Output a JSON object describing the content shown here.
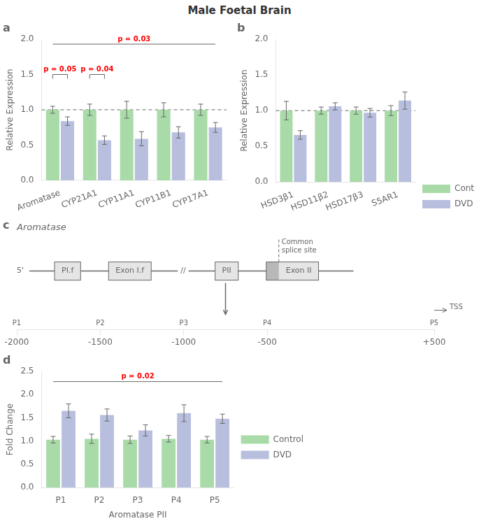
{
  "title": "Male Foetal Brain",
  "chart_data": [
    {
      "type": "bar",
      "panel": "a",
      "categories": [
        "Aromatase",
        "CYP21A1",
        "CYP11A1",
        "CYP11B1",
        "CYP17A1"
      ],
      "series": [
        {
          "name": "Control",
          "color": "#a8dba8",
          "values": [
            1.0,
            1.0,
            1.0,
            1.0,
            1.0
          ],
          "errors": [
            0.05,
            0.08,
            0.12,
            0.1,
            0.08
          ]
        },
        {
          "name": "DVD",
          "color": "#b8bedd",
          "values": [
            0.84,
            0.57,
            0.59,
            0.68,
            0.75
          ],
          "errors": [
            0.06,
            0.06,
            0.1,
            0.08,
            0.07
          ]
        }
      ],
      "ylabel": "Relative Expression",
      "ylim": [
        0.0,
        2.0
      ],
      "yticks": [
        {
          "value": 0.0,
          "label": "0.0"
        },
        0.5,
        {
          "value": 1.0,
          "label": "1.0"
        },
        1.5,
        {
          "value": 2.0,
          "label": "2.0"
        }
      ],
      "grid": false,
      "annotations": [
        {
          "y": 1.0,
          "line_style": "dashed"
        },
        {
          "text": "p = 0.05",
          "color": "red",
          "y": 1.5,
          "categories": [
            "Aromatase"
          ]
        },
        {
          "text": "p = 0.04",
          "color": "red",
          "y": 1.5,
          "categories": [
            "CYP21A1"
          ]
        },
        {
          "text": "p = 0.03",
          "color": "red",
          "y": 1.93,
          "categories": [
            "Aromatase",
            "CYP17A1"
          ]
        }
      ]
    },
    {
      "type": "bar",
      "panel": "b",
      "categories": [
        "HSD3β1",
        "HSD11β2",
        "HSD17β3",
        "S5AR1"
      ],
      "series": [
        {
          "name": "Control",
          "color": "#a8dba8",
          "values": [
            1.0,
            1.0,
            1.0,
            1.0
          ],
          "errors": [
            0.13,
            0.05,
            0.05,
            0.07
          ]
        },
        {
          "name": "DVD",
          "color": "#b8bedd",
          "values": [
            0.66,
            1.06,
            0.97,
            1.14
          ],
          "errors": [
            0.06,
            0.05,
            0.06,
            0.12
          ]
        }
      ],
      "ylabel": "Relative Expression",
      "ylim": [
        0.0,
        2.0
      ],
      "yticks": [
        {
          "value": 0.0,
          "label": "0.0"
        },
        0.5,
        {
          "value": 1.0,
          "label": "1.0"
        },
        1.5,
        {
          "value": 2.0,
          "label": "2.0"
        }
      ],
      "grid": false,
      "legend": "right",
      "annotations": [
        {
          "y": 1.0,
          "line_style": "dashed"
        }
      ]
    },
    {
      "type": "diagram",
      "panel": "c",
      "title": "Aromatase",
      "annotations": [
        {
          "text": "5'"
        },
        {
          "text": "PI.f",
          "marker": "box"
        },
        {
          "text": "Exon I.f",
          "marker": "box"
        },
        {
          "text": "//"
        },
        {
          "text": "PII",
          "marker": "box"
        },
        {
          "text": "Exon II",
          "marker": "box"
        },
        {
          "text": "Common\nsplice site",
          "line_style": "dashed"
        },
        {
          "text": "TSS",
          "x": 500
        }
      ],
      "categories": [
        "P1",
        "P2",
        "P3",
        "P4",
        "P5"
      ],
      "xlim": [
        -2000,
        500
      ],
      "xticks": [
        -2000,
        -1500,
        -1000,
        -500,
        {
          "value": 500,
          "label": "+500"
        }
      ],
      "grid": false
    },
    {
      "type": "bar",
      "panel": "d",
      "categories": [
        "P1",
        "P2",
        "P3",
        "P4",
        "P5"
      ],
      "series": [
        {
          "name": "Control",
          "color": "#a8dba8",
          "values": [
            1.03,
            1.05,
            1.03,
            1.05,
            1.03
          ],
          "errors": [
            0.07,
            0.1,
            0.08,
            0.07,
            0.07
          ]
        },
        {
          "name": "DVD",
          "color": "#b8bedd",
          "values": [
            1.65,
            1.56,
            1.23,
            1.6,
            1.48
          ],
          "errors": [
            0.15,
            0.13,
            0.12,
            0.18,
            0.1
          ]
        }
      ],
      "ylabel": "Fold Change",
      "xlabel": "Aromatase PII",
      "ylim": [
        0.0,
        2.5
      ],
      "yticks": [
        {
          "value": 0.0,
          "label": "0.0"
        },
        0.5,
        {
          "value": 1.0,
          "label": "1.0"
        },
        1.5,
        {
          "value": 2.0,
          "label": "2.0"
        },
        2.5
      ],
      "grid": false,
      "legend": "right",
      "annotations": [
        {
          "text": "p = 0.02",
          "color": "red",
          "y": 2.28,
          "categories": [
            "P1",
            "P5"
          ]
        }
      ]
    }
  ]
}
